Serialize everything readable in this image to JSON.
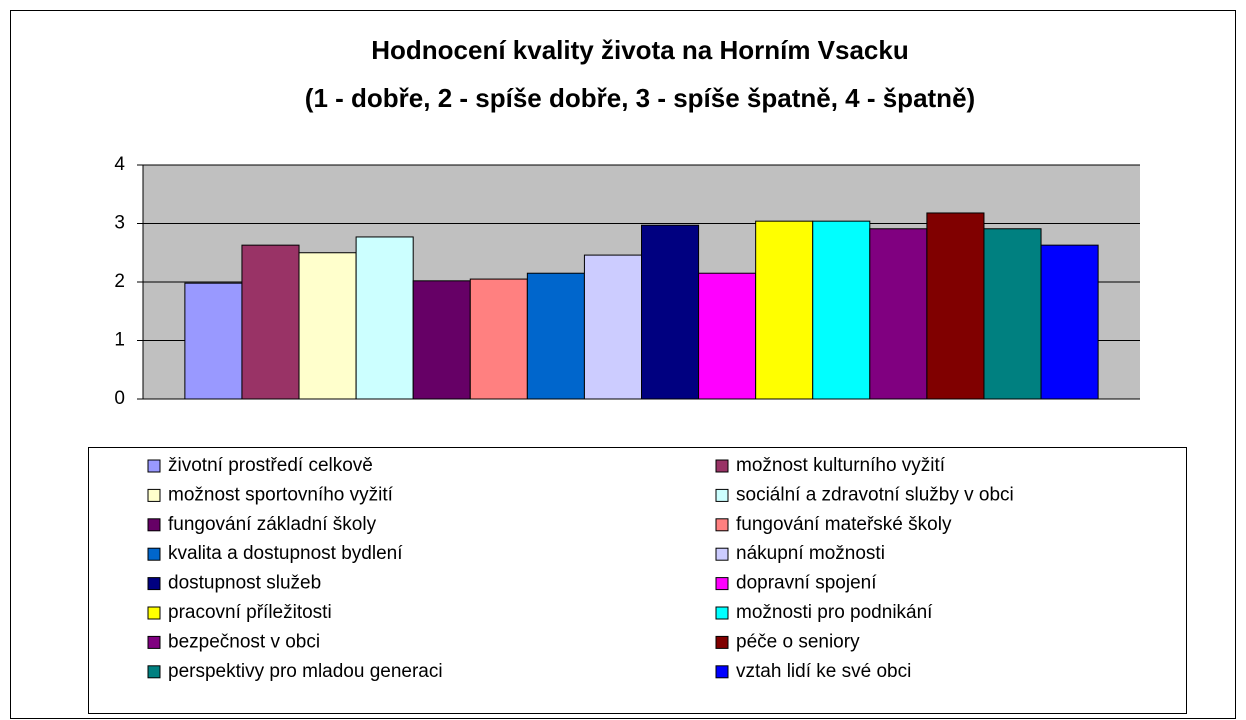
{
  "chart_data": {
    "type": "bar",
    "title": [
      "Hodnocení kvality života na Horním Vsacku",
      "(1 - dobře, 2 - spíše dobře, 3 - spíše špatně, 4 - špatně)"
    ],
    "categories": [
      null
    ],
    "series": [
      {
        "name": "životní prostředí celkově",
        "color": "#9999ff",
        "values": [
          1.98
        ]
      },
      {
        "name": "možnost kulturního vyžití",
        "color": "#993366",
        "values": [
          2.63
        ]
      },
      {
        "name": "možnost sportovního vyžití",
        "color": "#ffffcc",
        "values": [
          2.5
        ]
      },
      {
        "name": "sociální a zdravotní služby v obci",
        "color": "#ccffff",
        "values": [
          2.77
        ]
      },
      {
        "name": "fungování základní školy",
        "color": "#660066",
        "values": [
          2.02
        ]
      },
      {
        "name": "fungování mateřské školy",
        "color": "#ff8080",
        "values": [
          2.05
        ]
      },
      {
        "name": "kvalita a dostupnost bydlení",
        "color": "#0066cc",
        "values": [
          2.15
        ]
      },
      {
        "name": "nákupní možnosti",
        "color": "#ccccff",
        "values": [
          2.46
        ]
      },
      {
        "name": "dostupnost služeb",
        "color": "#000080",
        "values": [
          2.97
        ]
      },
      {
        "name": "dopravní spojení",
        "color": "#ff00ff",
        "values": [
          2.15
        ]
      },
      {
        "name": "pracovní příležitosti",
        "color": "#ffff00",
        "values": [
          3.04
        ]
      },
      {
        "name": "možnosti pro podnikání",
        "color": "#00ffff",
        "values": [
          3.04
        ]
      },
      {
        "name": "bezpečnost v obci",
        "color": "#800080",
        "values": [
          2.91
        ]
      },
      {
        "name": "péče o seniory",
        "color": "#800000",
        "values": [
          3.18
        ]
      },
      {
        "name": "perspektivy pro mladou generaci",
        "color": "#008080",
        "values": [
          2.91
        ]
      },
      {
        "name": "vztah lidí ke své obci",
        "color": "#0000ff",
        "values": [
          2.63
        ]
      }
    ],
    "ylim": [
      0,
      4
    ],
    "yticks": [
      0,
      1,
      2,
      3,
      4
    ],
    "grid": true,
    "legend": "bottom"
  }
}
